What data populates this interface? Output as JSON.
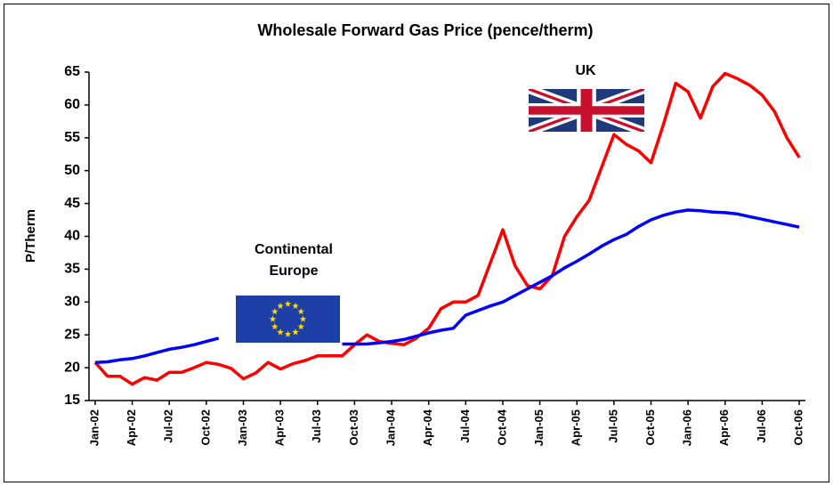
{
  "chart_data": {
    "type": "line",
    "title": "Wholesale Forward Gas Price (pence/therm)",
    "y_label": "P/Therm",
    "categories": [
      "Jan-02",
      null,
      null,
      "Apr-02",
      null,
      null,
      "Jul-02",
      null,
      null,
      "Oct-02",
      null,
      null,
      "Jan-03",
      null,
      null,
      "Apr-03",
      null,
      null,
      "Jul-03",
      null,
      null,
      "Oct-03",
      null,
      null,
      "Jan-04",
      null,
      null,
      "Apr-04",
      null,
      null,
      "Jul-04",
      null,
      null,
      "Oct-04",
      null,
      null,
      "Jan-05",
      null,
      null,
      "Apr-05",
      null,
      null,
      "Jul-05",
      null,
      null,
      "Oct-05",
      null,
      null,
      "Jan-06",
      null,
      null,
      "Apr-06",
      null,
      null,
      "Jul-06",
      null,
      null,
      "Oct-06"
    ],
    "series": [
      {
        "color": "#ff0000",
        "values": [
          20.8,
          18.7,
          18.7,
          17.5,
          18.5,
          18.1,
          19.3,
          19.3,
          20,
          20.8,
          20.5,
          19.9,
          18.3,
          19.2,
          20.8,
          19.8,
          20.6,
          21.1,
          21.8,
          21.8,
          21.8,
          23.5,
          25,
          24,
          23.7,
          23.5,
          24.5,
          26,
          29,
          30,
          30,
          31,
          36,
          41,
          35.5,
          32.5,
          32,
          34,
          40,
          43,
          45.5,
          50.5,
          55.5,
          54,
          53,
          51.2,
          57,
          63.3,
          62,
          58,
          62.8,
          64.8,
          64,
          63,
          61.5,
          59,
          55,
          52
        ]
      },
      {
        "color": "#0000ff",
        "values": [
          20.8,
          20.9,
          21.2,
          21.4,
          21.8,
          22.3,
          22.8,
          23.1,
          23.5,
          24,
          24.5,
          null,
          null,
          null,
          null,
          null,
          null,
          null,
          null,
          null,
          23.6,
          23.6,
          23.6,
          23.8,
          24,
          24.3,
          24.8,
          25.3,
          25.7,
          26,
          28,
          28.7,
          29.4,
          30,
          31,
          32,
          33,
          34,
          35.2,
          36.2,
          37.3,
          38.5,
          39.5,
          40.3,
          41.5,
          42.5,
          43.2,
          43.7,
          44,
          43.9,
          43.7,
          43.6,
          43.4,
          43,
          42.6,
          42.2,
          41.8,
          41.4
        ]
      }
    ],
    "annotations": [
      {
        "lines": [
          "Continental",
          "Europe"
        ]
      },
      {
        "lines": [
          "UK"
        ]
      }
    ],
    "ylim": [
      15,
      65
    ],
    "yticks": [
      15,
      20,
      25,
      30,
      35,
      40,
      45,
      50,
      55,
      60,
      65
    ],
    "grid": false
  }
}
